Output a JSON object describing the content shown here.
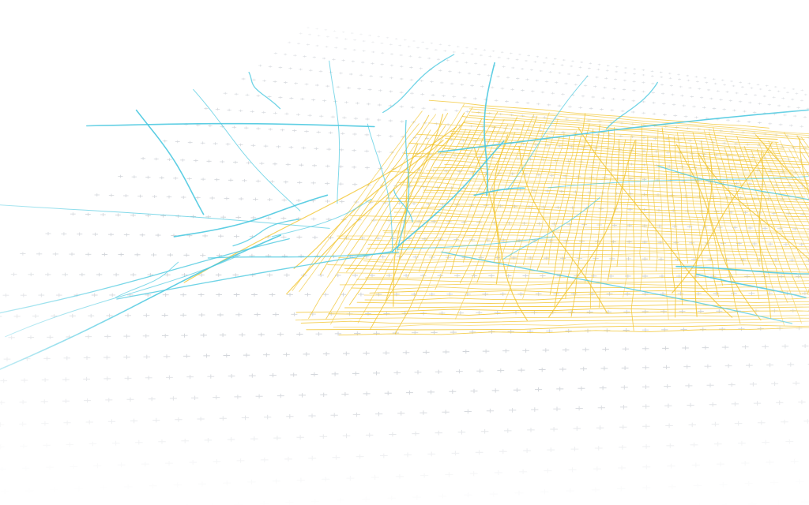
{
  "map": {
    "style": "3d-perspective-network",
    "background_color": "#ffffff",
    "grid": {
      "visible": true,
      "marker": "plus",
      "color": "#b9bec6"
    },
    "layers": [
      {
        "name": "",
        "color": "#4cc9e0",
        "role": "major-lines"
      },
      {
        "name": "",
        "color": "#f2c531",
        "role": "street-grid"
      }
    ]
  }
}
